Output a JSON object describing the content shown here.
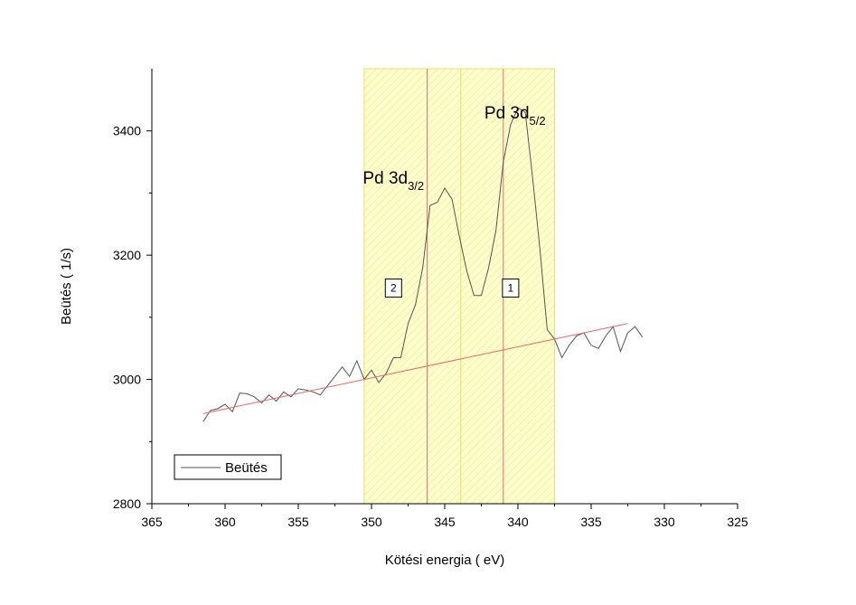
{
  "chart_data": {
    "type": "line",
    "xlabel": "Kötési energia  ( eV)",
    "ylabel": "Beütés  ( 1/s)",
    "xlim": [
      365,
      325
    ],
    "ylim": [
      2800,
      3500
    ],
    "x_ticks": [
      365,
      360,
      355,
      350,
      345,
      340,
      335,
      330,
      325
    ],
    "y_ticks": [
      2800,
      3000,
      3200,
      3400
    ],
    "x_reversed": true,
    "series": [
      {
        "name": "Beütés",
        "color": "#555555",
        "x": [
          361.5,
          361,
          360.5,
          360,
          359.5,
          359,
          358.5,
          358,
          357.5,
          357,
          356.5,
          356,
          355.5,
          355,
          354.5,
          354,
          353.5,
          353,
          352.5,
          352,
          351.5,
          351,
          350.5,
          350,
          349.5,
          349,
          348.5,
          348,
          347.5,
          347,
          346.5,
          346,
          345.5,
          345,
          344.5,
          344,
          343.5,
          343,
          342.5,
          342,
          341.5,
          341,
          340.5,
          340,
          339.5,
          339,
          338.5,
          338,
          337.5,
          337,
          336.5,
          336,
          335.5,
          335,
          334.5,
          334,
          333.5,
          333,
          332.5,
          332,
          331.5
        ],
        "y": [
          2932,
          2950,
          2953,
          2960,
          2948,
          2978,
          2977,
          2972,
          2962,
          2975,
          2965,
          2980,
          2972,
          2985,
          2983,
          2980,
          2975,
          2990,
          3005,
          3020,
          3005,
          3030,
          3000,
          3015,
          2995,
          3010,
          3035,
          3035,
          3090,
          3120,
          3180,
          3280,
          3285,
          3308,
          3290,
          3230,
          3175,
          3135,
          3135,
          3180,
          3240,
          3350,
          3410,
          3437,
          3430,
          3325,
          3210,
          3080,
          3065,
          3035,
          3055,
          3070,
          3075,
          3055,
          3050,
          3070,
          3085,
          3045,
          3075,
          3085,
          3068
        ]
      },
      {
        "name": "",
        "color": "#ee6666",
        "x": [
          361.5,
          332.5
        ],
        "y": [
          2945,
          3090
        ]
      }
    ],
    "peak_regions": [
      {
        "label": "2",
        "peak": "Pd 3d",
        "sub": "3/2",
        "x_center": 346.2,
        "x_range": [
          350.5,
          343.9
        ]
      },
      {
        "label": "1",
        "peak": "Pd 3d",
        "sub": "5/2",
        "x_center": 341,
        "x_range": [
          343.9,
          337.5
        ]
      }
    ],
    "legend": {
      "entries": [
        "Beütés"
      ],
      "placement": "bottom-left"
    },
    "colors": {
      "region_fill": "#ffffcc",
      "region_border": "#e8e070",
      "region_hatch": "#ece4a0",
      "center_line": "#e07070",
      "data_line": "#555555",
      "baseline": "#ee6666"
    },
    "grid": false
  }
}
